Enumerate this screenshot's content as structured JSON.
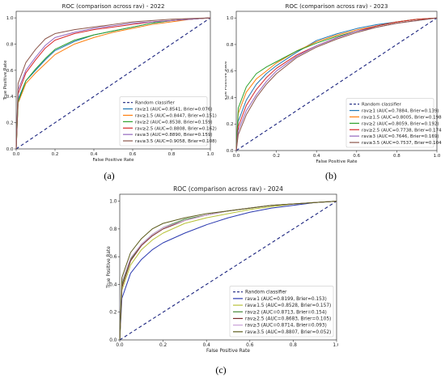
{
  "chart_data": [
    {
      "type": "line",
      "title": "ROC (comparison across rav) - 2022",
      "xlabel": "False Positive Rate",
      "ylabel": "True Positive Rate",
      "xlim": [
        0,
        1
      ],
      "ylim": [
        0,
        1.05
      ],
      "xticks": [
        "0.0",
        "0.2",
        "0.4",
        "0.6",
        "0.8",
        "1.0"
      ],
      "yticks": [
        "0.0",
        "0.2",
        "0.4",
        "0.6",
        "0.8",
        "1.0"
      ],
      "grid": false,
      "legend_position": "bottom-right",
      "subfigure_label": "(a)",
      "baseline": {
        "name": "Random classifier",
        "color": "#1a237e"
      },
      "series": [
        {
          "name": "rav≥1 (AUC=0.8541, Brier=0.076)",
          "color": "#1f77b4",
          "x": [
            0,
            0.01,
            0.05,
            0.1,
            0.15,
            0.2,
            0.3,
            0.4,
            0.5,
            0.6,
            0.7,
            0.8,
            0.9,
            1.0
          ],
          "y": [
            0,
            0.38,
            0.52,
            0.6,
            0.68,
            0.75,
            0.82,
            0.87,
            0.9,
            0.93,
            0.96,
            0.98,
            0.99,
            1.0
          ]
        },
        {
          "name": "rav≥1.5 (AUC=0.8447, Brier=0.151)",
          "color": "#ff7f0e",
          "x": [
            0,
            0.01,
            0.05,
            0.1,
            0.15,
            0.2,
            0.3,
            0.4,
            0.5,
            0.6,
            0.7,
            0.8,
            0.9,
            1.0
          ],
          "y": [
            0,
            0.35,
            0.5,
            0.58,
            0.65,
            0.72,
            0.8,
            0.85,
            0.89,
            0.92,
            0.95,
            0.97,
            0.99,
            1.0
          ]
        },
        {
          "name": "rav≥2 (AUC=0.8538, Brier=0.159)",
          "color": "#2ca02c",
          "x": [
            0,
            0.01,
            0.05,
            0.1,
            0.15,
            0.2,
            0.3,
            0.4,
            0.5,
            0.6,
            0.7,
            0.8,
            0.9,
            1.0
          ],
          "y": [
            0,
            0.36,
            0.52,
            0.61,
            0.69,
            0.76,
            0.83,
            0.87,
            0.9,
            0.93,
            0.96,
            0.98,
            0.99,
            1.0
          ]
        },
        {
          "name": "rav≥2.5 (AUC=0.8808, Brier=0.162)",
          "color": "#d62728",
          "x": [
            0,
            0.01,
            0.05,
            0.1,
            0.15,
            0.2,
            0.3,
            0.4,
            0.5,
            0.6,
            0.7,
            0.8,
            0.9,
            1.0
          ],
          "y": [
            0,
            0.42,
            0.58,
            0.68,
            0.77,
            0.83,
            0.88,
            0.91,
            0.93,
            0.95,
            0.97,
            0.98,
            0.99,
            1.0
          ]
        },
        {
          "name": "rav≥3 (AUC=0.8890, Brier=0.159)",
          "color": "#9467bd",
          "x": [
            0,
            0.01,
            0.05,
            0.1,
            0.15,
            0.2,
            0.3,
            0.4,
            0.5,
            0.6,
            0.7,
            0.8,
            0.9,
            1.0
          ],
          "y": [
            0,
            0.45,
            0.6,
            0.7,
            0.79,
            0.85,
            0.89,
            0.92,
            0.94,
            0.96,
            0.97,
            0.98,
            0.99,
            1.0
          ]
        },
        {
          "name": "rav≥3.5 (AUC=0.9058, Brier=0.108)",
          "color": "#8c564b",
          "x": [
            0,
            0.01,
            0.05,
            0.1,
            0.15,
            0.2,
            0.3,
            0.4,
            0.5,
            0.6,
            0.7,
            0.8,
            0.9,
            1.0
          ],
          "y": [
            0,
            0.5,
            0.66,
            0.76,
            0.84,
            0.88,
            0.91,
            0.93,
            0.95,
            0.97,
            0.98,
            0.99,
            0.995,
            1.0
          ]
        }
      ]
    },
    {
      "type": "line",
      "title": "ROC (comparison across rav) - 2023",
      "xlabel": "False Positive Rate",
      "ylabel": "True Positive Rate",
      "xlim": [
        0,
        1
      ],
      "ylim": [
        0,
        1.05
      ],
      "xticks": [
        "0.0",
        "0.2",
        "0.4",
        "0.6",
        "0.8",
        "1.0"
      ],
      "yticks": [
        "0.0",
        "0.2",
        "0.4",
        "0.6",
        "0.8",
        "1.0"
      ],
      "grid": false,
      "legend_position": "bottom-right",
      "subfigure_label": "(b)",
      "baseline": {
        "name": "Random classifier",
        "color": "#1a237e"
      },
      "series": [
        {
          "name": "rav≥1 (AUC=0.7884, Brier=0.139)",
          "color": "#1f77b4",
          "x": [
            0,
            0.01,
            0.05,
            0.1,
            0.15,
            0.2,
            0.3,
            0.4,
            0.5,
            0.6,
            0.7,
            0.8,
            0.9,
            1.0
          ],
          "y": [
            0,
            0.22,
            0.38,
            0.5,
            0.58,
            0.64,
            0.74,
            0.83,
            0.88,
            0.92,
            0.95,
            0.97,
            0.99,
            1.0
          ]
        },
        {
          "name": "rav≥1.5 (AUC=0.8005, Brier=0.198)",
          "color": "#ff7f0e",
          "x": [
            0,
            0.01,
            0.05,
            0.1,
            0.15,
            0.2,
            0.3,
            0.4,
            0.5,
            0.6,
            0.7,
            0.8,
            0.9,
            1.0
          ],
          "y": [
            0,
            0.28,
            0.44,
            0.54,
            0.6,
            0.66,
            0.75,
            0.82,
            0.87,
            0.91,
            0.94,
            0.97,
            0.99,
            1.0
          ]
        },
        {
          "name": "rav≥2 (AUC=0.8059, Brier=0.192)",
          "color": "#2ca02c",
          "x": [
            0,
            0.01,
            0.05,
            0.1,
            0.15,
            0.2,
            0.3,
            0.4,
            0.5,
            0.6,
            0.7,
            0.8,
            0.9,
            1.0
          ],
          "y": [
            0,
            0.32,
            0.48,
            0.58,
            0.63,
            0.67,
            0.75,
            0.81,
            0.86,
            0.9,
            0.94,
            0.97,
            0.99,
            1.0
          ]
        },
        {
          "name": "rav≥2.5 (AUC=0.7738, Brier=0.174)",
          "color": "#d62728",
          "x": [
            0,
            0.01,
            0.05,
            0.1,
            0.15,
            0.2,
            0.3,
            0.4,
            0.5,
            0.6,
            0.7,
            0.8,
            0.9,
            1.0
          ],
          "y": [
            0,
            0.18,
            0.34,
            0.46,
            0.55,
            0.62,
            0.72,
            0.79,
            0.85,
            0.9,
            0.94,
            0.97,
            0.99,
            1.0
          ]
        },
        {
          "name": "rav≥3 (AUC=0.7646, Brier=0.169)",
          "color": "#9467bd",
          "x": [
            0,
            0.01,
            0.05,
            0.1,
            0.15,
            0.2,
            0.3,
            0.4,
            0.5,
            0.6,
            0.7,
            0.8,
            0.9,
            1.0
          ],
          "y": [
            0,
            0.15,
            0.3,
            0.42,
            0.52,
            0.6,
            0.71,
            0.79,
            0.85,
            0.9,
            0.93,
            0.96,
            0.98,
            1.0
          ]
        },
        {
          "name": "rav≥3.5 (AUC=0.7537, Brier=0.104)",
          "color": "#8c564b",
          "x": [
            0,
            0.01,
            0.05,
            0.1,
            0.15,
            0.2,
            0.3,
            0.4,
            0.5,
            0.6,
            0.7,
            0.8,
            0.9,
            1.0
          ],
          "y": [
            0,
            0.12,
            0.27,
            0.4,
            0.5,
            0.58,
            0.7,
            0.78,
            0.84,
            0.89,
            0.93,
            0.96,
            0.98,
            1.0
          ]
        }
      ]
    },
    {
      "type": "line",
      "title": "ROC (comparison across rav) - 2024",
      "xlabel": "False Positive Rate",
      "ylabel": "True Positive Rate",
      "xlim": [
        0,
        1
      ],
      "ylim": [
        0,
        1.05
      ],
      "xticks": [
        "0.0",
        "0.2",
        "0.4",
        "0.6",
        "0.8",
        "1.0"
      ],
      "yticks": [
        "0.0",
        "0.2",
        "0.4",
        "0.6",
        "0.8",
        "1.0"
      ],
      "grid": false,
      "legend_position": "bottom-right",
      "subfigure_label": "(c)",
      "baseline": {
        "name": "Random classifier",
        "color": "#1a237e"
      },
      "series": [
        {
          "name": "rav≥1 (AUC=0.8199, Brier=0.153)",
          "color": "#2b3ab0",
          "x": [
            0,
            0.01,
            0.05,
            0.1,
            0.15,
            0.2,
            0.3,
            0.4,
            0.5,
            0.6,
            0.7,
            0.8,
            0.9,
            1.0
          ],
          "y": [
            0,
            0.3,
            0.48,
            0.58,
            0.65,
            0.7,
            0.77,
            0.83,
            0.88,
            0.92,
            0.95,
            0.97,
            0.99,
            1.0
          ]
        },
        {
          "name": "rav≥1.5 (AUC=0.8528, Brier=0.157)",
          "color": "#b8c23a",
          "x": [
            0,
            0.01,
            0.05,
            0.1,
            0.15,
            0.2,
            0.3,
            0.4,
            0.5,
            0.6,
            0.7,
            0.8,
            0.9,
            1.0
          ],
          "y": [
            0,
            0.36,
            0.54,
            0.65,
            0.72,
            0.77,
            0.84,
            0.88,
            0.91,
            0.94,
            0.96,
            0.98,
            0.99,
            1.0
          ]
        },
        {
          "name": "rav≥2 (AUC=0.8713, Brier=0.154)",
          "color": "#4a8a3a",
          "x": [
            0,
            0.01,
            0.05,
            0.1,
            0.15,
            0.2,
            0.3,
            0.4,
            0.5,
            0.6,
            0.7,
            0.8,
            0.9,
            1.0
          ],
          "y": [
            0,
            0.4,
            0.58,
            0.69,
            0.76,
            0.81,
            0.87,
            0.9,
            0.93,
            0.95,
            0.97,
            0.98,
            0.99,
            1.0
          ]
        },
        {
          "name": "rav≥2.5 (AUC=0.8683, Brier=0.105)",
          "color": "#7a2a2a",
          "x": [
            0,
            0.01,
            0.05,
            0.1,
            0.15,
            0.2,
            0.3,
            0.4,
            0.5,
            0.6,
            0.7,
            0.8,
            0.9,
            1.0
          ],
          "y": [
            0,
            0.38,
            0.57,
            0.68,
            0.75,
            0.8,
            0.86,
            0.9,
            0.93,
            0.95,
            0.97,
            0.98,
            0.99,
            1.0
          ]
        },
        {
          "name": "rav≥3 (AUC=0.8714, Brier=0.093)",
          "color": "#c8a0d8",
          "x": [
            0,
            0.01,
            0.05,
            0.1,
            0.15,
            0.2,
            0.3,
            0.4,
            0.5,
            0.6,
            0.7,
            0.8,
            0.9,
            1.0
          ],
          "y": [
            0,
            0.42,
            0.59,
            0.69,
            0.76,
            0.81,
            0.86,
            0.9,
            0.93,
            0.95,
            0.97,
            0.98,
            0.99,
            1.0
          ]
        },
        {
          "name": "rav≥3.5 (AUC=0.8807, Brier=0.052)",
          "color": "#5a5a1a",
          "x": [
            0,
            0.01,
            0.05,
            0.1,
            0.15,
            0.2,
            0.3,
            0.4,
            0.5,
            0.6,
            0.7,
            0.8,
            0.9,
            1.0
          ],
          "y": [
            0,
            0.45,
            0.63,
            0.73,
            0.8,
            0.84,
            0.88,
            0.91,
            0.93,
            0.95,
            0.97,
            0.98,
            0.99,
            1.0
          ]
        }
      ]
    }
  ]
}
